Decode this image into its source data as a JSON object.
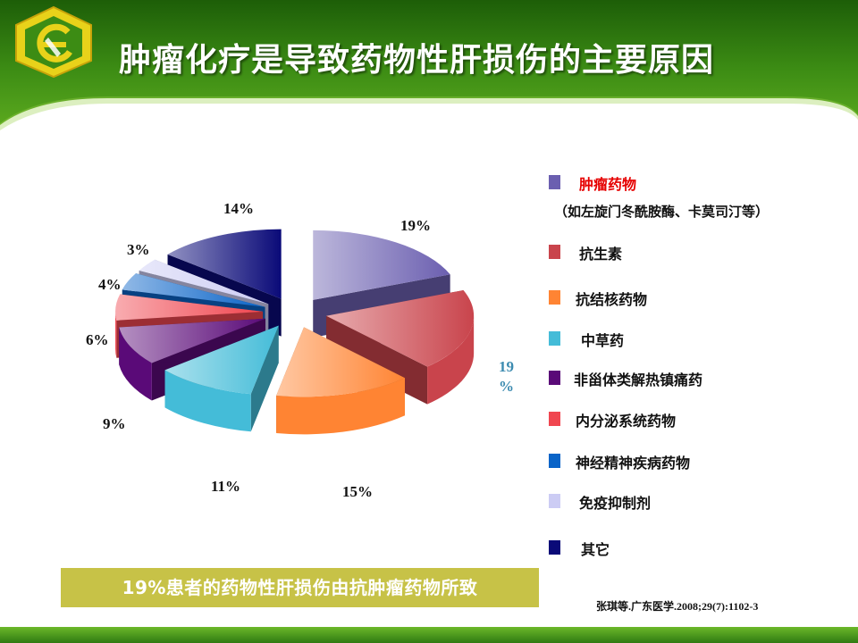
{
  "title": "肿瘤化疗是导致药物性肝损伤的主要原因",
  "conclusion": "19%患者的药物性肝损伤由抗肿瘤药物所致",
  "citation": "张琪等.广东医学.2008;29(7):1102-3",
  "legend_note": "（如左旋门冬酰胺酶、卡莫司汀等）",
  "colors": {
    "header_green": "#2f7a12",
    "conclusion_bar": "#c7c247",
    "title_red": "#e60000"
  },
  "chart_data": {
    "type": "pie",
    "title": "",
    "unit": "%",
    "slices": [
      {
        "label": "肿瘤药物",
        "value": 19,
        "display": "19%",
        "color": "#6b5fb0"
      },
      {
        "label": "抗生素",
        "value": 19,
        "display": "19%",
        "color": "#c9444c"
      },
      {
        "label": "抗结核药物",
        "value": 15,
        "display": "15%",
        "color": "#ff8433"
      },
      {
        "label": "中草药",
        "value": 11,
        "display": "11%",
        "color": "#44bcd8"
      },
      {
        "label": "非甾体类解热镇痛药",
        "value": 9,
        "display": "9%",
        "color": "#5a0a78"
      },
      {
        "label": "内分泌系统药物",
        "value": 6,
        "display": "6%",
        "color": "#f04650"
      },
      {
        "label": "神经精神疾病药物",
        "value": 4,
        "display": "4%",
        "color": "#0a64c8"
      },
      {
        "label": "免疫抑制剂",
        "value": 3,
        "display": "3%",
        "color": "#ccccf4"
      },
      {
        "label": "其它",
        "value": 14,
        "display": "14%",
        "color": "#0a0a78"
      }
    ],
    "legend_position": "right"
  }
}
